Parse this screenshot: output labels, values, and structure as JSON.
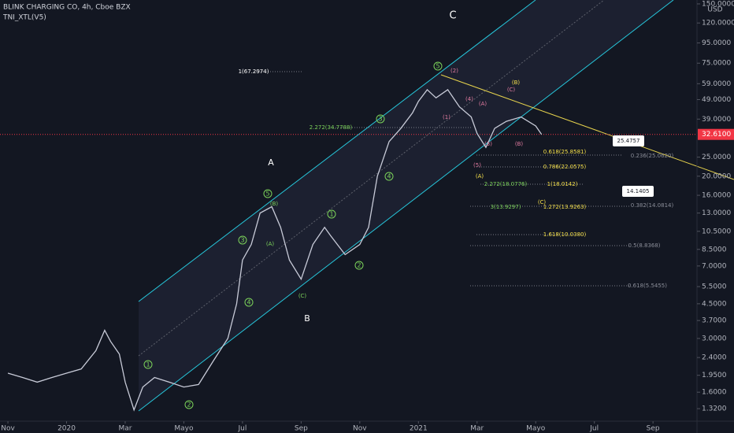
{
  "header": {
    "title": "BLINK CHARGING CO, 4h, Cboe BZX",
    "indicator": "TNI_XTL(V5)",
    "currency": "USD"
  },
  "chart_data": {
    "type": "line",
    "log_scale": true,
    "grid": false,
    "x": [
      0,
      0.5,
      1,
      1.5,
      2,
      2.5,
      3,
      3.3,
      3.5,
      3.8,
      4,
      4.3,
      4.6,
      5,
      5.5,
      6,
      6.5,
      7,
      7.5,
      7.8,
      8,
      8.3,
      8.6,
      9,
      9.3,
      9.6,
      10,
      10.4,
      10.8,
      11,
      11.5,
      12,
      12.3,
      12.6,
      13,
      13.4,
      13.8,
      14,
      14.3,
      14.6,
      15,
      15.4,
      15.8,
      16,
      16.3,
      16.6,
      17,
      17.5,
      18,
      18.2
    ],
    "series": [
      {
        "color": "#c8cbd8",
        "values": [
          2.0,
          1.9,
          1.8,
          1.9,
          2.0,
          2.1,
          2.6,
          3.3,
          2.9,
          2.5,
          1.8,
          1.3,
          1.7,
          1.9,
          1.8,
          1.7,
          1.75,
          2.3,
          3.0,
          4.5,
          7.5,
          9,
          13,
          14,
          11,
          7.5,
          6,
          9,
          11,
          10,
          8,
          9,
          11,
          20,
          30,
          35,
          42,
          48,
          55,
          50,
          55,
          45,
          40,
          33,
          28,
          35,
          38,
          40,
          36,
          32.61
        ]
      }
    ],
    "xlim": [
      -0.27,
      23.5
    ],
    "xticks": [
      {
        "value": 0,
        "label": "Nov"
      },
      {
        "value": 2,
        "label": "2020"
      },
      {
        "value": 4,
        "label": "Mar"
      },
      {
        "value": 6,
        "label": "Mayo"
      },
      {
        "value": 8,
        "label": "Jul"
      },
      {
        "value": 10,
        "label": "Sep"
      },
      {
        "value": 12,
        "label": "Nov"
      },
      {
        "value": 14,
        "label": "2021"
      },
      {
        "value": 16,
        "label": "Mar"
      },
      {
        "value": 18,
        "label": "Mayo"
      },
      {
        "value": 20,
        "label": "Jul"
      },
      {
        "value": 22,
        "label": "Sep"
      }
    ],
    "ylim": [
      1.14,
      157
    ],
    "yticks": [
      {
        "value": 150,
        "label": "150.0000"
      },
      {
        "value": 120,
        "label": "120.0000"
      },
      {
        "value": 95,
        "label": "95.0000"
      },
      {
        "value": 75,
        "label": "75.0000"
      },
      {
        "value": 59,
        "label": "59.0000"
      },
      {
        "value": 49,
        "label": "49.0000"
      },
      {
        "value": 39,
        "label": "39.0000"
      },
      {
        "value": 25,
        "label": "25.0000"
      },
      {
        "value": 20,
        "label": "20.0000"
      },
      {
        "value": 16,
        "label": "16.0000"
      },
      {
        "value": 13,
        "label": "13.0000"
      },
      {
        "value": 10.5,
        "label": "10.5000"
      },
      {
        "value": 8.5,
        "label": "8.5000"
      },
      {
        "value": 7,
        "label": "7.0000"
      },
      {
        "value": 5.5,
        "label": "5.5000"
      },
      {
        "value": 4.5,
        "label": "4.5000"
      },
      {
        "value": 3.7,
        "label": "3.7000"
      },
      {
        "value": 3,
        "label": "3.0000"
      },
      {
        "value": 2.4,
        "label": "2.4000"
      },
      {
        "value": 1.95,
        "label": "1.9500"
      },
      {
        "value": 1.6,
        "label": "1.6000"
      },
      {
        "value": 1.32,
        "label": "1.3200"
      }
    ],
    "last_price": {
      "value": 32.61,
      "label": "32.6100"
    },
    "annotations": [
      "C",
      "A",
      "B",
      "1",
      "2",
      "3",
      "4",
      "5",
      "1",
      "2",
      "3",
      "4",
      "5",
      "(B)",
      "(A)",
      "(C)",
      "(2)",
      "(1)",
      "(4)",
      "(3)",
      "(5)",
      "(A)",
      "(B)",
      "(C)",
      "(B)",
      "(A)",
      "(C)",
      "1(67.2974)",
      "2.272(34.7788)",
      "0.618(25.8581)",
      "0.786(22.0575)",
      "2.272(18.0776)",
      "1(18.0142)",
      "3(13.9297)",
      "1.272(13.9263)",
      "1.618(10.0380)",
      "0.236(25.0620)",
      "0.382(14.0814)",
      "0.5(8.8368)",
      "0.618(5.5455)",
      "25.4757",
      "14.1405"
    ]
  }
}
